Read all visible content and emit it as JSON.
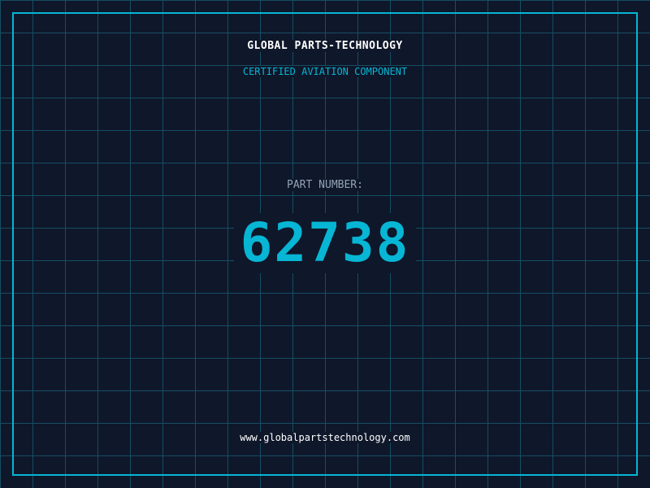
{
  "header": {
    "title": "GLOBAL PARTS-TECHNOLOGY",
    "subtitle": "CERTIFIED AVIATION COMPONENT"
  },
  "part": {
    "label": "PART NUMBER:",
    "number": "62738"
  },
  "footer": {
    "url": "www.globalpartstechnology.com"
  },
  "colors": {
    "background": "#0f172a",
    "accent": "#06b6d4",
    "grid": "#164e63"
  }
}
